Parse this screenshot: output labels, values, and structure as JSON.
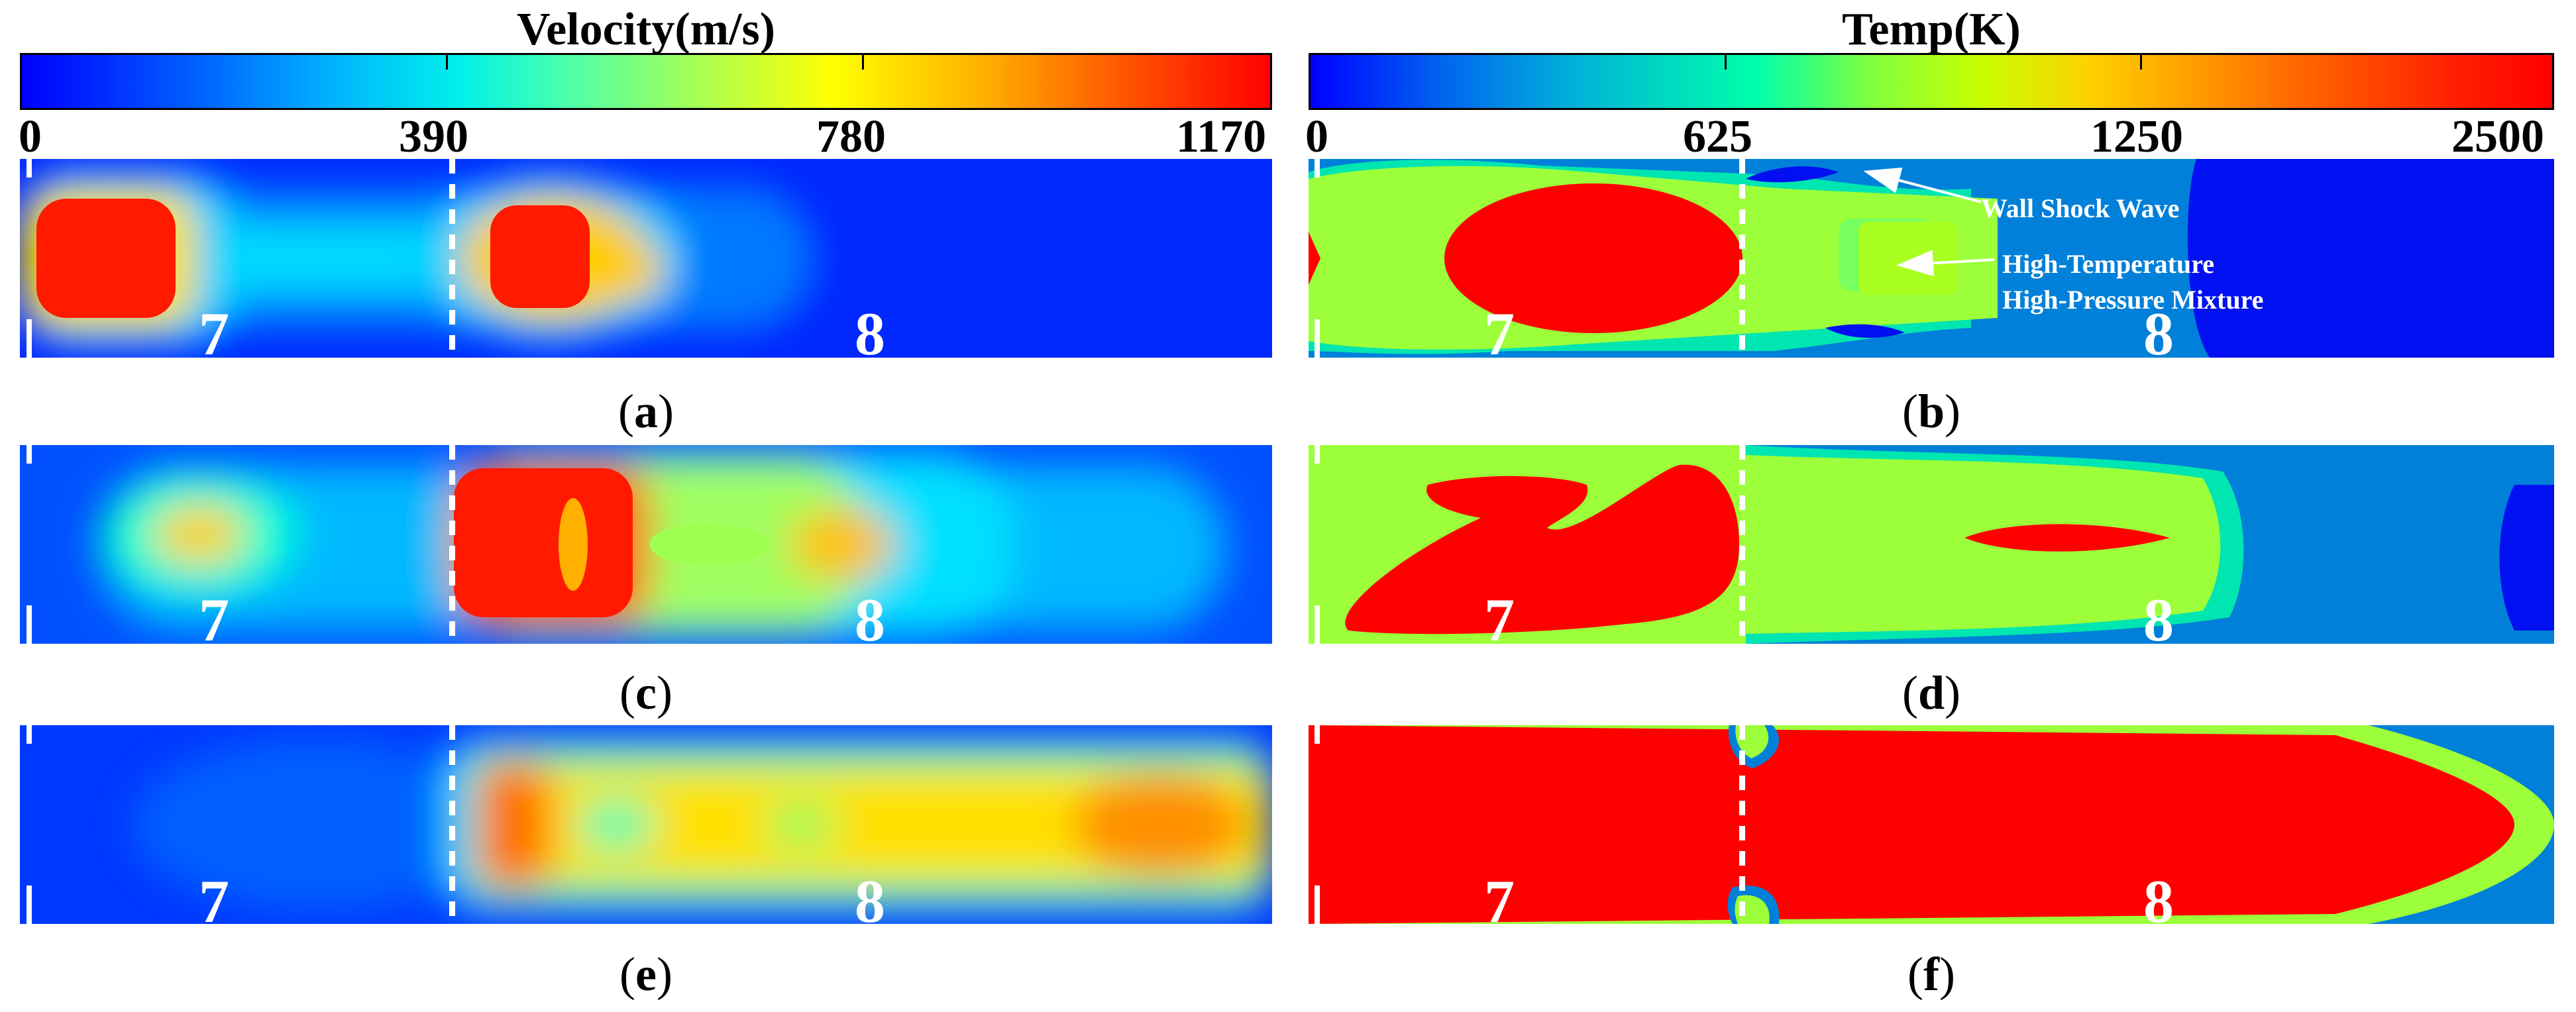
{
  "velocity_colorbar": {
    "title": "Velocity(m/s)",
    "ticks": [
      "0",
      "390",
      "780",
      "1170"
    ],
    "range": [
      0,
      1170
    ]
  },
  "temperature_colorbar": {
    "title": "Temp(K)",
    "ticks": [
      "0",
      "625",
      "1250",
      "2500"
    ],
    "range": [
      0,
      2500
    ]
  },
  "segment_labels": [
    "7",
    "8"
  ],
  "panels": [
    {
      "id": "a",
      "field": "velocity"
    },
    {
      "id": "b",
      "field": "temperature"
    },
    {
      "id": "c",
      "field": "velocity"
    },
    {
      "id": "d",
      "field": "temperature"
    },
    {
      "id": "e",
      "field": "velocity"
    },
    {
      "id": "f",
      "field": "temperature"
    }
  ],
  "captions": {
    "a": {
      "open": "(",
      "letter": "a",
      "close": ")"
    },
    "b": {
      "open": "(",
      "letter": "b",
      "close": ")"
    },
    "c": {
      "open": "(",
      "letter": "c",
      "close": ")"
    },
    "d": {
      "open": "(",
      "letter": "d",
      "close": ")"
    },
    "e": {
      "open": "(",
      "letter": "e",
      "close": ")"
    },
    "f": {
      "open": "(",
      "letter": "f",
      "close": ")"
    }
  },
  "annotations": {
    "wall_shock_wave": "Wall Shock Wave",
    "mixture_line1": "High-Temperature",
    "mixture_line2": "High-Pressure Mixture"
  },
  "colors": {
    "velocity_low": "#0000ff",
    "velocity_high": "#ff0000",
    "temp_background": "#0078d4",
    "temp_mid": "#a8ff20",
    "temp_high": "#ff0000"
  }
}
